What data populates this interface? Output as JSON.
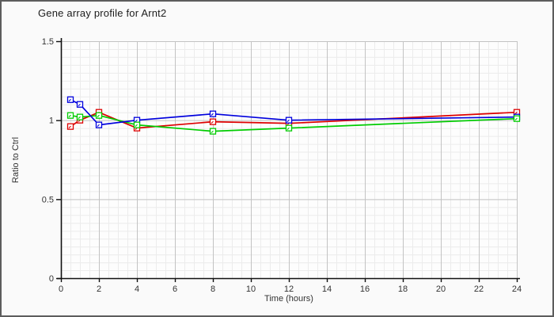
{
  "window": {
    "background_color": "#fafafa",
    "border_color": "#5c5c5c"
  },
  "chart_data": {
    "type": "line",
    "title": "Gene array profile for Arnt2",
    "xlabel": "Time (hours)",
    "ylabel": "Ratio to Ctrl",
    "xlim": [
      0,
      24
    ],
    "ylim": [
      0,
      1.5
    ],
    "x_tick_labels": [
      "0",
      "2",
      "4",
      "6",
      "8",
      "10",
      "12",
      "14",
      "16",
      "18",
      "20",
      "22",
      "24"
    ],
    "x_tick_values": [
      0,
      2,
      4,
      6,
      8,
      10,
      12,
      14,
      16,
      18,
      20,
      22,
      24
    ],
    "y_tick_labels": [
      "0",
      "0.5",
      "1",
      "1.5"
    ],
    "y_tick_values": [
      0,
      0.5,
      1,
      1.5
    ],
    "grid": {
      "minor_x_step": 0.5,
      "minor_y_step": 0.05,
      "major_x_step": 2,
      "major_y_step": 0.5,
      "visible": true
    },
    "legend": "none",
    "marker": "open-square",
    "x": [
      0.5,
      1,
      2,
      4,
      8,
      12,
      24
    ],
    "series": [
      {
        "name": "series-red",
        "color": "#dd0000",
        "values": [
          0.96,
          1.0,
          1.05,
          0.95,
          0.99,
          0.98,
          1.05
        ]
      },
      {
        "name": "series-green",
        "color": "#00cc00",
        "values": [
          1.03,
          1.02,
          1.03,
          0.97,
          0.93,
          0.95,
          1.01
        ]
      },
      {
        "name": "series-blue",
        "color": "#0000dd",
        "values": [
          1.13,
          1.1,
          0.97,
          1.0,
          1.04,
          1.0,
          1.02
        ]
      }
    ]
  }
}
